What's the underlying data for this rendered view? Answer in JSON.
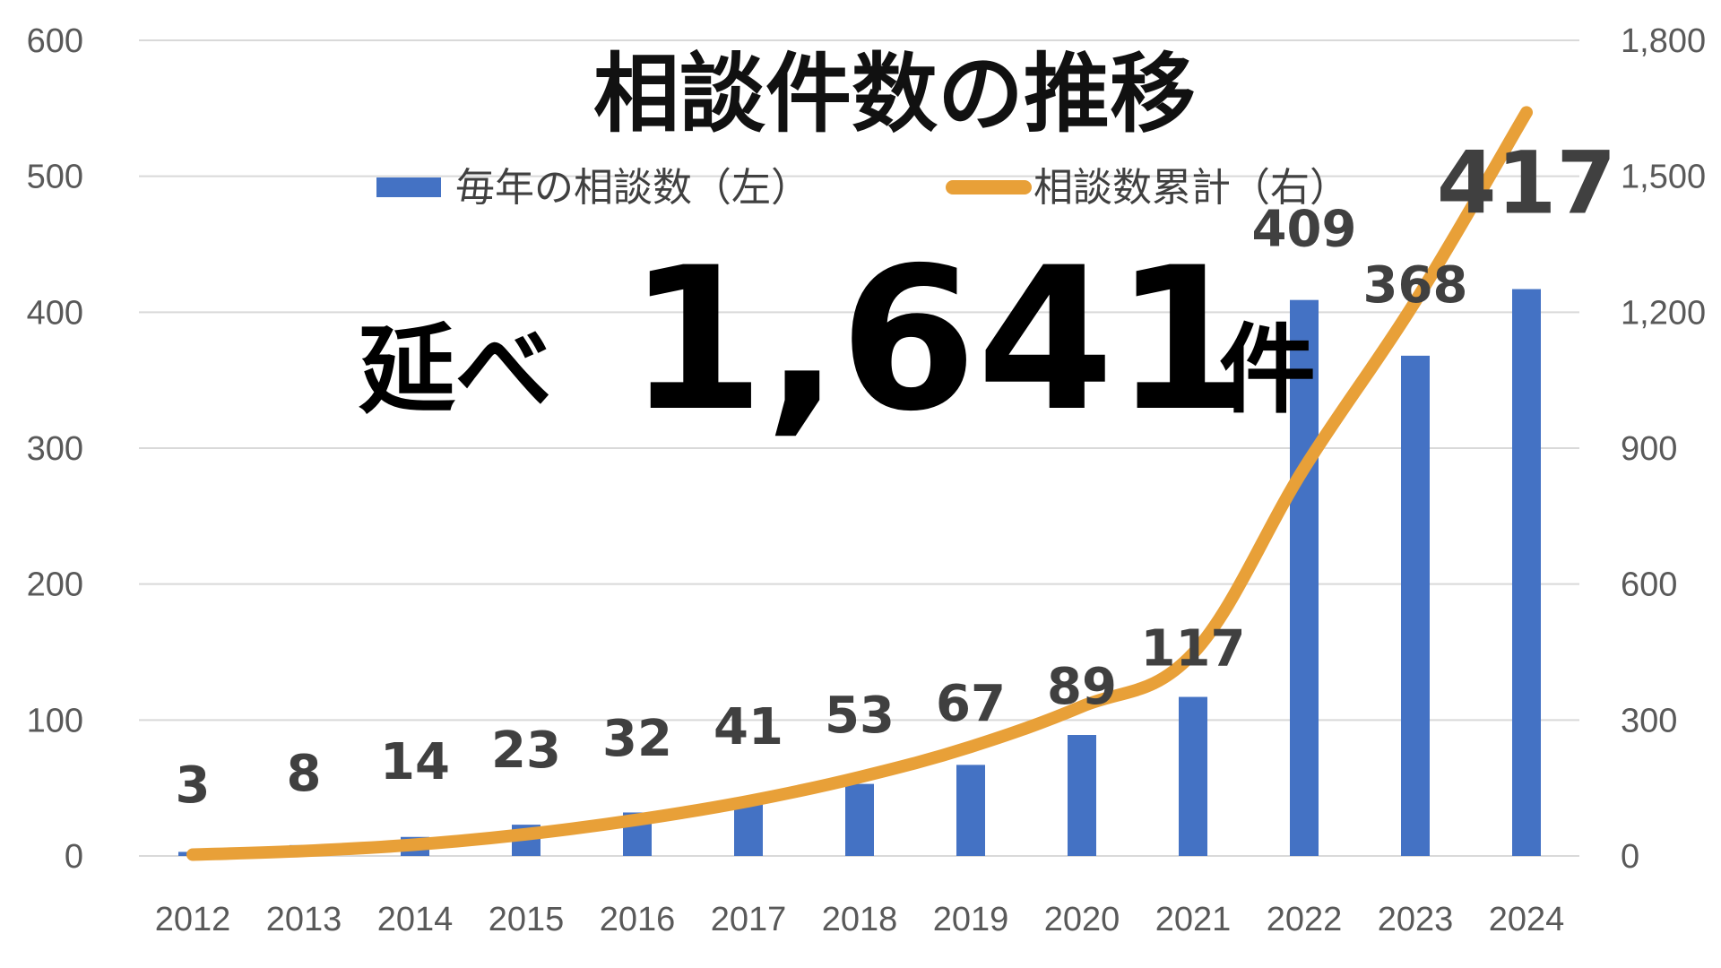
{
  "chart_data": {
    "type": "bar",
    "title": "相談件数の推移",
    "categories": [
      "2012",
      "2013",
      "2014",
      "2015",
      "2016",
      "2017",
      "2018",
      "2019",
      "2020",
      "2021",
      "2022",
      "2023",
      "2024"
    ],
    "series": [
      {
        "name": "毎年の相談数（左）",
        "type": "bar",
        "axis": "left",
        "color": "#4472c4",
        "values": [
          3,
          8,
          14,
          23,
          32,
          41,
          53,
          67,
          89,
          117,
          409,
          368,
          417
        ],
        "labels": [
          "3",
          "8",
          "14",
          "23",
          "32",
          "41",
          "53",
          "67",
          "89",
          "117",
          "409",
          "368",
          "417"
        ]
      },
      {
        "name": "相談数累計（右）",
        "type": "line",
        "axis": "right",
        "color": "#e8a038",
        "values": [
          3,
          11,
          25,
          48,
          80,
          121,
          174,
          241,
          330,
          447,
          856,
          1224,
          1641
        ]
      }
    ],
    "y_left": {
      "min": 0,
      "max": 600,
      "ticks": [
        "0",
        "100",
        "200",
        "300",
        "400",
        "500",
        "600"
      ]
    },
    "y_right": {
      "min": 0,
      "max": 1800,
      "ticks": [
        "0",
        "300",
        "600",
        "900",
        "1,200",
        "1,500",
        "1,800"
      ]
    },
    "grid": true,
    "legend_position": "top-center"
  },
  "callout": {
    "prefix": "延べ",
    "number": "1,641",
    "suffix": "件"
  }
}
